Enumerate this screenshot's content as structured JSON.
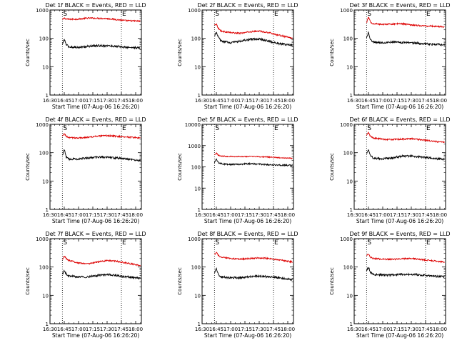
{
  "figure": {
    "panel_titles": [
      "Det 1f BLACK = Events, RED = LLD",
      "Det 2f BLACK = Events, RED = LLD",
      "Det 3f BLACK = Events, RED = LLD",
      "Det 4f BLACK = Events, RED = LLD",
      "Det 5f BLACK = Events, RED = LLD",
      "Det 6f BLACK = Events, RED = LLD",
      "Det 7f BLACK = Events, RED = LLD",
      "Det 8f BLACK = Events, RED = LLD",
      "Det 9f BLACK = Events, RED = LLD"
    ],
    "colors": {
      "events": "#000000",
      "lld": "#dd0000",
      "axes": "#000000"
    }
  },
  "chart_data": [
    {
      "type": "line",
      "title": "Det 1f BLACK = Events, RED = LLD",
      "xlabel": "Start Time (07-Aug-06 16:26:20)",
      "ylabel": "Counts/sec",
      "yscale": "log",
      "ylim": [
        1,
        1000
      ],
      "xlim": [
        "16:30",
        "18:06"
      ],
      "xticks": [
        "16:30",
        "16:45",
        "17:00",
        "17:15",
        "17:30",
        "17:45",
        "18:00"
      ],
      "yticks": [
        "1",
        "10",
        "100",
        "1000"
      ],
      "vlines": [
        {
          "x": "16:43",
          "label": "S"
        },
        {
          "x": "17:45",
          "label": "E"
        }
      ],
      "series": [
        {
          "name": "LLD",
          "color": "red",
          "x": [
            "16:43",
            "16:45",
            "16:47",
            "16:50",
            "17:00",
            "17:10",
            "17:20",
            "17:30",
            "17:40",
            "17:50",
            "18:00",
            "18:05"
          ],
          "values": [
            450,
            520,
            480,
            470,
            480,
            520,
            510,
            500,
            460,
            420,
            410,
            400
          ]
        },
        {
          "name": "Events",
          "color": "black",
          "x": [
            "16:43",
            "16:45",
            "16:47",
            "16:50",
            "17:00",
            "17:10",
            "17:20",
            "17:30",
            "17:40",
            "17:50",
            "18:00",
            "18:05"
          ],
          "values": [
            60,
            95,
            60,
            50,
            48,
            52,
            55,
            55,
            52,
            48,
            47,
            45
          ]
        }
      ]
    },
    {
      "type": "line",
      "title": "Det 2f BLACK = Events, RED = LLD",
      "xlabel": "Start Time (07-Aug-06 16:26:20)",
      "ylabel": "Counts/sec",
      "yscale": "log",
      "ylim": [
        1,
        1000
      ],
      "xlim": [
        "16:30",
        "18:06"
      ],
      "xticks": [
        "16:30",
        "16:45",
        "17:00",
        "17:15",
        "17:30",
        "17:45",
        "18:00"
      ],
      "yticks": [
        "1",
        "10",
        "100",
        "1000"
      ],
      "vlines": [
        {
          "x": "16:43",
          "label": "S"
        },
        {
          "x": "17:45",
          "label": "E"
        }
      ],
      "series": [
        {
          "name": "LLD",
          "color": "red",
          "x": [
            "16:43",
            "16:45",
            "16:47",
            "16:50",
            "17:00",
            "17:10",
            "17:20",
            "17:30",
            "17:40",
            "17:50",
            "18:00",
            "18:05"
          ],
          "values": [
            300,
            320,
            230,
            180,
            160,
            150,
            170,
            180,
            160,
            130,
            110,
            100
          ]
        },
        {
          "name": "Events",
          "color": "black",
          "x": [
            "16:43",
            "16:45",
            "16:47",
            "16:50",
            "17:00",
            "17:10",
            "17:20",
            "17:30",
            "17:40",
            "17:50",
            "18:00",
            "18:05"
          ],
          "values": [
            120,
            160,
            110,
            80,
            70,
            80,
            90,
            95,
            80,
            65,
            60,
            58
          ]
        }
      ]
    },
    {
      "type": "line",
      "title": "Det 3f BLACK = Events, RED = LLD",
      "xlabel": "Start Time (07-Aug-06 16:26:20)",
      "ylabel": "Counts/sec",
      "yscale": "log",
      "ylim": [
        1,
        1000
      ],
      "xlim": [
        "16:30",
        "18:06"
      ],
      "xticks": [
        "16:30",
        "16:45",
        "17:00",
        "17:15",
        "17:30",
        "17:45",
        "18:00"
      ],
      "yticks": [
        "1",
        "10",
        "100",
        "1000"
      ],
      "vlines": [
        {
          "x": "16:43",
          "label": "S"
        },
        {
          "x": "17:45",
          "label": "E"
        }
      ],
      "series": [
        {
          "name": "LLD",
          "color": "red",
          "x": [
            "16:43",
            "16:45",
            "16:47",
            "16:50",
            "17:00",
            "17:10",
            "17:20",
            "17:30",
            "17:40",
            "17:50",
            "18:00",
            "18:05"
          ],
          "values": [
            350,
            560,
            380,
            330,
            310,
            320,
            330,
            300,
            280,
            270,
            260,
            250
          ]
        },
        {
          "name": "Events",
          "color": "black",
          "x": [
            "16:43",
            "16:45",
            "16:47",
            "16:50",
            "17:00",
            "17:10",
            "17:20",
            "17:30",
            "17:40",
            "17:50",
            "18:00",
            "18:05"
          ],
          "values": [
            100,
            170,
            90,
            75,
            70,
            75,
            72,
            70,
            65,
            62,
            60,
            58
          ]
        }
      ]
    },
    {
      "type": "line",
      "title": "Det 4f BLACK = Events, RED = LLD",
      "xlabel": "Start Time (07-Aug-06 16:26:20)",
      "ylabel": "Counts/sec",
      "yscale": "log",
      "ylim": [
        1,
        1000
      ],
      "xlim": [
        "16:30",
        "18:06"
      ],
      "xticks": [
        "16:30",
        "16:45",
        "17:00",
        "17:15",
        "17:30",
        "17:45",
        "18:00"
      ],
      "yticks": [
        "1",
        "10",
        "100",
        "1000"
      ],
      "vlines": [
        {
          "x": "16:43",
          "label": "S"
        },
        {
          "x": "17:45",
          "label": "E"
        }
      ],
      "series": [
        {
          "name": "LLD",
          "color": "red",
          "x": [
            "16:43",
            "16:45",
            "16:47",
            "16:50",
            "17:00",
            "17:10",
            "17:20",
            "17:30",
            "17:40",
            "17:50",
            "18:00",
            "18:05"
          ],
          "values": [
            380,
            480,
            370,
            340,
            330,
            350,
            380,
            400,
            380,
            360,
            340,
            330
          ]
        },
        {
          "name": "Events",
          "color": "black",
          "x": [
            "16:43",
            "16:45",
            "16:47",
            "16:50",
            "17:00",
            "17:10",
            "17:20",
            "17:30",
            "17:40",
            "17:50",
            "18:00",
            "18:05"
          ],
          "values": [
            80,
            130,
            70,
            60,
            60,
            65,
            70,
            70,
            65,
            60,
            55,
            52
          ]
        }
      ]
    },
    {
      "type": "line",
      "title": "Det 5f BLACK = Events, RED = LLD",
      "xlabel": "Start Time (07-Aug-06 16:26:20)",
      "ylabel": "Counts/sec",
      "yscale": "log",
      "ylim": [
        1,
        10000
      ],
      "xlim": [
        "16:30",
        "18:06"
      ],
      "xticks": [
        "16:30",
        "16:45",
        "17:00",
        "17:15",
        "17:30",
        "17:45",
        "18:00"
      ],
      "yticks": [
        "1",
        "10",
        "100",
        "1000",
        "10000"
      ],
      "vlines": [
        {
          "x": "16:43",
          "label": "S"
        },
        {
          "x": "17:45",
          "label": "E"
        }
      ],
      "series": [
        {
          "name": "LLD",
          "color": "red",
          "x": [
            "16:43",
            "16:45",
            "16:47",
            "16:50",
            "17:00",
            "17:10",
            "17:20",
            "17:30",
            "17:40",
            "17:50",
            "18:00",
            "18:05"
          ],
          "values": [
            380,
            450,
            350,
            320,
            310,
            300,
            310,
            300,
            290,
            270,
            260,
            250
          ]
        },
        {
          "name": "Events",
          "color": "black",
          "x": [
            "16:43",
            "16:45",
            "16:47",
            "16:50",
            "17:00",
            "17:10",
            "17:20",
            "17:30",
            "17:40",
            "17:50",
            "18:00",
            "18:05"
          ],
          "values": [
            150,
            230,
            160,
            140,
            130,
            135,
            140,
            135,
            125,
            120,
            118,
            118
          ]
        }
      ]
    },
    {
      "type": "line",
      "title": "Det 6f BLACK = Events, RED = LLD",
      "xlabel": "Start Time (07-Aug-06 16:26:20)",
      "ylabel": "Counts/sec",
      "yscale": "log",
      "ylim": [
        1,
        1000
      ],
      "xlim": [
        "16:30",
        "18:06"
      ],
      "xticks": [
        "16:30",
        "16:45",
        "17:00",
        "17:15",
        "17:30",
        "17:45",
        "18:00"
      ],
      "yticks": [
        "1",
        "10",
        "100",
        "1000"
      ],
      "vlines": [
        {
          "x": "16:43",
          "label": "S"
        },
        {
          "x": "17:45",
          "label": "E"
        }
      ],
      "series": [
        {
          "name": "LLD",
          "color": "red",
          "x": [
            "16:43",
            "16:45",
            "16:47",
            "16:50",
            "17:00",
            "17:10",
            "17:20",
            "17:30",
            "17:40",
            "17:50",
            "18:00",
            "18:05"
          ],
          "values": [
            400,
            520,
            380,
            330,
            300,
            290,
            300,
            310,
            290,
            260,
            240,
            230
          ]
        },
        {
          "name": "Events",
          "color": "black",
          "x": [
            "16:43",
            "16:45",
            "16:47",
            "16:50",
            "17:00",
            "17:10",
            "17:20",
            "17:30",
            "17:40",
            "17:50",
            "18:00",
            "18:05"
          ],
          "values": [
            90,
            140,
            80,
            65,
            60,
            65,
            75,
            75,
            70,
            65,
            60,
            58
          ]
        }
      ]
    },
    {
      "type": "line",
      "title": "Det 7f BLACK = Events, RED = LLD",
      "xlabel": "Start Time (07-Aug-06 16:26:20)",
      "ylabel": "Counts/sec",
      "yscale": "log",
      "ylim": [
        1,
        1000
      ],
      "xlim": [
        "16:30",
        "18:06"
      ],
      "xticks": [
        "16:30",
        "16:45",
        "17:00",
        "17:15",
        "17:30",
        "17:45",
        "18:00"
      ],
      "yticks": [
        "1",
        "10",
        "100",
        "1000"
      ],
      "vlines": [
        {
          "x": "16:43",
          "label": "S"
        },
        {
          "x": "17:45",
          "label": "E"
        }
      ],
      "series": [
        {
          "name": "LLD",
          "color": "red",
          "x": [
            "16:43",
            "16:45",
            "16:47",
            "16:50",
            "17:00",
            "17:10",
            "17:20",
            "17:30",
            "17:40",
            "17:50",
            "18:00",
            "18:05"
          ],
          "values": [
            180,
            250,
            200,
            170,
            140,
            130,
            150,
            170,
            160,
            140,
            120,
            110
          ]
        },
        {
          "name": "Events",
          "color": "black",
          "x": [
            "16:43",
            "16:45",
            "16:47",
            "16:50",
            "17:00",
            "17:10",
            "17:20",
            "17:30",
            "17:40",
            "17:50",
            "18:00",
            "18:05"
          ],
          "values": [
            55,
            75,
            55,
            48,
            45,
            45,
            50,
            55,
            50,
            45,
            42,
            40
          ]
        }
      ]
    },
    {
      "type": "line",
      "title": "Det 8f BLACK = Events, RED = LLD",
      "xlabel": "Start Time (07-Aug-06 16:26:20)",
      "ylabel": "Counts/sec",
      "yscale": "log",
      "ylim": [
        1,
        1000
      ],
      "xlim": [
        "16:30",
        "18:06"
      ],
      "xticks": [
        "16:30",
        "16:45",
        "17:00",
        "17:15",
        "17:30",
        "17:45",
        "18:00"
      ],
      "yticks": [
        "1",
        "10",
        "100",
        "1000"
      ],
      "vlines": [
        {
          "x": "16:43",
          "label": "S"
        },
        {
          "x": "17:45",
          "label": "E"
        }
      ],
      "series": [
        {
          "name": "LLD",
          "color": "red",
          "x": [
            "16:43",
            "16:45",
            "16:47",
            "16:50",
            "17:00",
            "17:10",
            "17:20",
            "17:30",
            "17:40",
            "17:50",
            "18:00",
            "18:05"
          ],
          "values": [
            280,
            330,
            260,
            220,
            200,
            190,
            200,
            210,
            200,
            180,
            160,
            150
          ]
        },
        {
          "name": "Events",
          "color": "black",
          "x": [
            "16:43",
            "16:45",
            "16:47",
            "16:50",
            "17:00",
            "17:10",
            "17:20",
            "17:30",
            "17:40",
            "17:50",
            "18:00",
            "18:05"
          ],
          "values": [
            60,
            90,
            55,
            45,
            42,
            42,
            45,
            48,
            45,
            42,
            38,
            36
          ]
        }
      ]
    },
    {
      "type": "line",
      "title": "Det 9f BLACK = Events, RED = LLD",
      "xlabel": "Start Time (07-Aug-06 16:26:20)",
      "ylabel": "Counts/sec",
      "yscale": "log",
      "ylim": [
        1,
        1000
      ],
      "xlim": [
        "16:30",
        "18:06"
      ],
      "xticks": [
        "16:30",
        "16:45",
        "17:00",
        "17:15",
        "17:30",
        "17:45",
        "18:00"
      ],
      "yticks": [
        "1",
        "10",
        "100",
        "1000"
      ],
      "vlines": [
        {
          "x": "16:43",
          "label": "S"
        },
        {
          "x": "17:45",
          "label": "E"
        }
      ],
      "series": [
        {
          "name": "LLD",
          "color": "red",
          "x": [
            "16:43",
            "16:45",
            "16:47",
            "16:50",
            "17:00",
            "17:10",
            "17:20",
            "17:30",
            "17:40",
            "17:50",
            "18:00",
            "18:05"
          ],
          "values": [
            250,
            300,
            220,
            200,
            190,
            185,
            195,
            200,
            185,
            170,
            155,
            150
          ]
        },
        {
          "name": "Events",
          "color": "black",
          "x": [
            "16:43",
            "16:45",
            "16:47",
            "16:50",
            "17:00",
            "17:10",
            "17:20",
            "17:30",
            "17:40",
            "17:50",
            "18:00",
            "18:05"
          ],
          "values": [
            70,
            100,
            65,
            55,
            52,
            52,
            55,
            55,
            52,
            48,
            46,
            45
          ]
        }
      ]
    }
  ]
}
